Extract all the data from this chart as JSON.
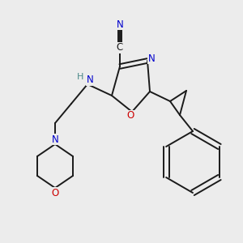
{
  "background_color": "#ececec",
  "bond_color": "#1a1a1a",
  "atom_colors": {
    "N": "#0000cc",
    "O": "#cc0000",
    "C": "#1a1a1a",
    "H": "#4a8888"
  },
  "figsize": [
    3.0,
    3.0
  ],
  "dpi": 100
}
